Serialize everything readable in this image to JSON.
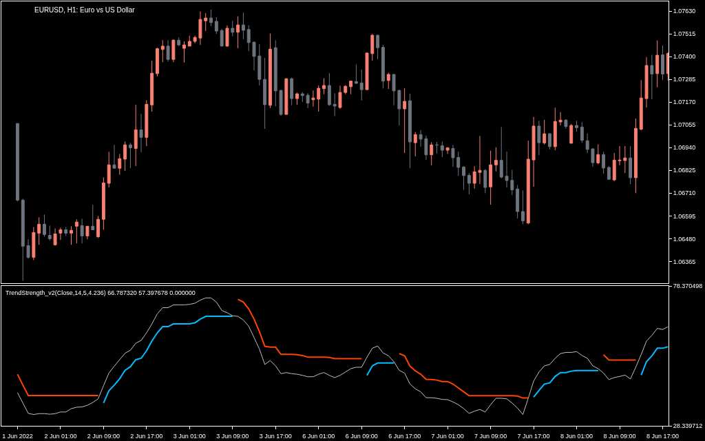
{
  "chart_data": [
    {
      "type": "candlestick",
      "title": "EURUSD, H1: Euro vs US Dollar",
      "categories": [
        "1 Jun 2022",
        null,
        null,
        null,
        null,
        null,
        null,
        null,
        "2 Jun 01:00",
        null,
        null,
        null,
        null,
        null,
        null,
        null,
        "2 Jun 09:00",
        null,
        null,
        null,
        null,
        null,
        null,
        null,
        "2 Jun 17:00",
        null,
        null,
        null,
        null,
        null,
        null,
        null,
        "3 Jun 01:00",
        null,
        null,
        null,
        null,
        null,
        null,
        null,
        "3 Jun 09:00",
        null,
        null,
        null,
        null,
        null,
        null,
        null,
        "3 Jun 17:00",
        null,
        null,
        null,
        null,
        null,
        null,
        null,
        "6 Jun 01:00",
        null,
        null,
        null,
        null,
        null,
        null,
        null,
        "6 Jun 09:00",
        null,
        null,
        null,
        null,
        null,
        null,
        null,
        "6 Jun 17:00",
        null,
        null,
        null,
        null,
        null,
        null,
        null,
        "7 Jun 01:00",
        null,
        null,
        null,
        null,
        null,
        null,
        null,
        "7 Jun 09:00",
        null,
        null,
        null,
        null,
        null,
        null,
        null,
        "7 Jun 17:00",
        null,
        null,
        null,
        null,
        null,
        null,
        null,
        "8 Jun 01:00",
        null,
        null,
        null,
        null,
        null,
        null,
        null,
        "8 Jun 09:00",
        null,
        null,
        null,
        null,
        null,
        null,
        null,
        "8 Jun 17:00",
        null
      ],
      "ohlc": [
        [
          1.07062,
          1.07062,
          1.06668,
          1.06675
        ],
        [
          1.06675,
          1.06682,
          1.06267,
          1.06442
        ],
        [
          1.06445,
          1.06477,
          1.06379,
          1.06386
        ],
        [
          1.06386,
          1.06539,
          1.06372,
          1.06511
        ],
        [
          1.06508,
          1.06588,
          1.06449,
          1.06553
        ],
        [
          1.06553,
          1.06602,
          1.0649,
          1.06501
        ],
        [
          1.06497,
          1.06546,
          1.0647,
          1.0648
        ],
        [
          1.06449,
          1.06532,
          1.06445,
          1.06504
        ],
        [
          1.06508,
          1.06536,
          1.06473,
          1.06525
        ],
        [
          1.06525,
          1.06539,
          1.06494,
          1.06508
        ],
        [
          1.06508,
          1.06543,
          1.06449,
          1.06522
        ],
        [
          1.06543,
          1.06578,
          1.06456,
          1.06564
        ],
        [
          1.06546,
          1.06581,
          1.06456,
          1.06494
        ],
        [
          1.06494,
          1.06543,
          1.06477,
          1.06543
        ],
        [
          1.06543,
          1.06651,
          1.06525,
          1.06525
        ],
        [
          1.0649,
          1.06595,
          1.06484,
          1.06578
        ],
        [
          1.06578,
          1.0679,
          1.06525,
          1.06762
        ],
        [
          1.0676,
          1.06919,
          1.06739,
          1.06853
        ],
        [
          1.06853,
          1.06954,
          1.06836,
          1.06836
        ],
        [
          1.06836,
          1.06908,
          1.06803,
          1.06884
        ],
        [
          1.06882,
          1.06971,
          1.06822,
          1.06954
        ],
        [
          1.06954,
          1.06964,
          1.06836,
          1.06939
        ],
        [
          1.06936,
          1.07156,
          1.06847,
          1.0703
        ],
        [
          1.0703,
          1.07111,
          1.06917,
          1.06992
        ],
        [
          1.06992,
          1.0718,
          1.06948,
          1.07159
        ],
        [
          1.07156,
          1.07379,
          1.07122,
          1.07316
        ],
        [
          1.07314,
          1.07445,
          1.073,
          1.0744
        ],
        [
          1.07436,
          1.07483,
          1.07372,
          1.07453
        ],
        [
          1.07453,
          1.07483,
          1.07375,
          1.07386
        ],
        [
          1.07386,
          1.07488,
          1.07372,
          1.07483
        ],
        [
          1.07483,
          1.07497,
          1.07453,
          1.07459
        ],
        [
          1.07442,
          1.07477,
          1.0737,
          1.07459
        ],
        [
          1.07453,
          1.07506,
          1.07453,
          1.07477
        ],
        [
          1.07477,
          1.07506,
          1.07467,
          1.07497
        ],
        [
          1.07494,
          1.07628,
          1.07459,
          1.07588
        ],
        [
          1.07581,
          1.0762,
          1.07529,
          1.07595
        ],
        [
          1.07595,
          1.07637,
          1.07554,
          1.07572
        ],
        [
          1.07578,
          1.07599,
          1.07515,
          1.07529
        ],
        [
          1.07532,
          1.0754,
          1.07453,
          1.07453
        ],
        [
          1.07453,
          1.07558,
          1.0745,
          1.07543
        ],
        [
          1.07543,
          1.07581,
          1.07502,
          1.07523
        ],
        [
          1.07523,
          1.07604,
          1.07442,
          1.0756
        ],
        [
          1.0756,
          1.07622,
          1.07488,
          1.07533
        ],
        [
          1.07537,
          1.07558,
          1.07428,
          1.07471
        ],
        [
          1.07473,
          1.07477,
          1.07331,
          1.07401
        ],
        [
          1.07403,
          1.07463,
          1.07254,
          1.07285
        ],
        [
          1.07285,
          1.07393,
          1.07035,
          1.07157
        ],
        [
          1.07154,
          1.07517,
          1.0714,
          1.07438
        ],
        [
          1.07445,
          1.07482,
          1.07149,
          1.07227
        ],
        [
          1.07229,
          1.07233,
          1.07101,
          1.07108
        ],
        [
          1.07108,
          1.07291,
          1.07105,
          1.07288
        ],
        [
          1.07288,
          1.07294,
          1.07154,
          1.07188
        ],
        [
          1.07188,
          1.07218,
          1.07157,
          1.07212
        ],
        [
          1.07212,
          1.07221,
          1.07171,
          1.07203
        ],
        [
          1.07205,
          1.07215,
          1.0714,
          1.07165
        ],
        [
          1.07182,
          1.07229,
          1.07147,
          1.07191
        ],
        [
          1.07185,
          1.07254,
          1.07122,
          1.0724
        ],
        [
          1.07238,
          1.07291,
          1.0721,
          1.07254
        ],
        [
          1.07254,
          1.07316,
          1.07151,
          1.07157
        ],
        [
          1.07159,
          1.07215,
          1.07099,
          1.0715
        ],
        [
          1.07143,
          1.07253,
          1.07136,
          1.07219
        ],
        [
          1.07219,
          1.07256,
          1.0721,
          1.0725
        ],
        [
          1.07248,
          1.07279,
          1.0721,
          1.07276
        ],
        [
          1.07274,
          1.0736,
          1.07262,
          1.07265
        ],
        [
          1.07267,
          1.07334,
          1.07178,
          1.07233
        ],
        [
          1.07233,
          1.07421,
          1.07231,
          1.07418
        ],
        [
          1.07415,
          1.07514,
          1.0738,
          1.07508
        ],
        [
          1.07508,
          1.07511,
          1.07387,
          1.07445
        ],
        [
          1.07447,
          1.07459,
          1.07239,
          1.07276
        ],
        [
          1.07279,
          1.07319,
          1.07236,
          1.0731
        ],
        [
          1.0731,
          1.07313,
          1.07154,
          1.07227
        ],
        [
          1.07229,
          1.07233,
          1.07052,
          1.07136
        ],
        [
          1.07136,
          1.0724,
          1.06913,
          1.07174
        ],
        [
          1.07177,
          1.07212,
          1.06836,
          1.06969
        ],
        [
          1.06965,
          1.07019,
          1.06896,
          1.07006
        ],
        [
          1.07006,
          1.07029,
          1.06945,
          1.06983
        ],
        [
          1.06985,
          1.07,
          1.06878,
          1.06904
        ],
        [
          1.06904,
          1.06968,
          1.06851,
          1.06954
        ],
        [
          1.06954,
          1.06968,
          1.0691,
          1.06953
        ],
        [
          1.0695,
          1.06971,
          1.06892,
          1.06927
        ],
        [
          1.06927,
          1.06942,
          1.06908,
          1.06939
        ],
        [
          1.06936,
          1.06954,
          1.06843,
          1.06889
        ],
        [
          1.06891,
          1.06919,
          1.06797,
          1.0684
        ],
        [
          1.06842,
          1.06846,
          1.06727,
          1.06799
        ],
        [
          1.068,
          1.06811,
          1.06704,
          1.0676
        ],
        [
          1.0676,
          1.06846,
          1.06733,
          1.06818
        ],
        [
          1.06815,
          1.06999,
          1.06756,
          1.06825
        ],
        [
          1.06825,
          1.06832,
          1.0671,
          1.06739
        ],
        [
          1.06742,
          1.06925,
          1.06652,
          1.06853
        ],
        [
          1.06853,
          1.06942,
          1.0682,
          1.06876
        ],
        [
          1.06876,
          1.07044,
          1.06785,
          1.06791
        ],
        [
          1.06796,
          1.06919,
          1.06739,
          1.06774
        ],
        [
          1.06775,
          1.06828,
          1.067,
          1.06727
        ],
        [
          1.06731,
          1.06751,
          1.06582,
          1.06617
        ],
        [
          1.06617,
          1.06724,
          1.06553,
          1.0657
        ],
        [
          1.06559,
          1.06975,
          1.06553,
          1.06882
        ],
        [
          1.06878,
          1.07095,
          1.06742,
          1.07049
        ],
        [
          1.07049,
          1.07076,
          1.06902,
          1.06965
        ],
        [
          1.06964,
          1.07081,
          1.06956,
          1.0701
        ],
        [
          1.0701,
          1.07014,
          1.06931,
          1.06945
        ],
        [
          1.06945,
          1.07142,
          1.06927,
          1.07072
        ],
        [
          1.0707,
          1.0712,
          1.07052,
          1.07079
        ],
        [
          1.07079,
          1.07084,
          1.07035,
          1.07047
        ],
        [
          1.06962,
          1.0706,
          1.06962,
          1.07052
        ],
        [
          1.07052,
          1.07076,
          1.07021,
          1.07041
        ],
        [
          1.07044,
          1.07068,
          1.06965,
          1.06977
        ],
        [
          1.06975,
          1.07012,
          1.06913,
          1.06931
        ],
        [
          1.06934,
          1.06936,
          1.06843,
          1.06864
        ],
        [
          1.06863,
          1.06957,
          1.06857,
          1.06905
        ],
        [
          1.06905,
          1.06919,
          1.06808,
          1.06837
        ],
        [
          1.0684,
          1.06847,
          1.06777,
          1.0678
        ],
        [
          1.06777,
          1.06913,
          1.06771,
          1.06877
        ],
        [
          1.06874,
          1.06948,
          1.06851,
          1.06877
        ],
        [
          1.06875,
          1.06948,
          1.06812,
          1.06888
        ],
        [
          1.06888,
          1.06948,
          1.06756,
          1.06788
        ],
        [
          1.06788,
          1.07087,
          1.0671,
          1.07037
        ],
        [
          1.07033,
          1.07281,
          1.07028,
          1.07191
        ],
        [
          1.07188,
          1.07398,
          1.07143,
          1.07355
        ],
        [
          1.07355,
          1.07409,
          1.07184,
          1.07312
        ],
        [
          1.07314,
          1.07482,
          1.07245,
          1.07407
        ],
        [
          1.07409,
          1.07456,
          1.07281,
          1.07312
        ],
        [
          1.07314,
          1.07421,
          1.07279,
          1.07416
        ]
      ],
      "colors": [
        "#6e757e",
        "#6e757e",
        "#6e757e",
        "#fa8072",
        "#fa8072",
        "#6e757e",
        "#6e757e",
        "#fa8072",
        "#fa8072",
        "#6e757e",
        "#fa8072",
        "#fa8072",
        "#6e757e",
        "#fa8072",
        "#6e757e",
        "#fa8072",
        "#fa8072",
        "#fa8072",
        "#6e757e",
        "#fa8072",
        "#fa8072",
        "#6e757e",
        "#fa8072",
        "#6e757e",
        "#fa8072",
        "#fa8072",
        "#fa8072",
        "#fa8072",
        "#6e757e",
        "#fa8072",
        "#6e757e",
        "#fa8072",
        "#fa8072",
        "#fa8072",
        "#fa8072",
        "#fa8072",
        "#6e757e",
        "#6e757e",
        "#6e757e",
        "#fa8072",
        "#6e757e",
        "#fa8072",
        "#6e757e",
        "#6e757e",
        "#6e757e",
        "#6e757e",
        "#6e757e",
        "#fa8072",
        "#6e757e",
        "#6e757e",
        "#fa8072",
        "#6e757e",
        "#fa8072",
        "#6e757e",
        "#6e757e",
        "#fa8072",
        "#fa8072",
        "#fa8072",
        "#6e757e",
        "#6e757e",
        "#fa8072",
        "#fa8072",
        "#fa8072",
        "#6e757e",
        "#6e757e",
        "#fa8072",
        "#fa8072",
        "#6e757e",
        "#6e757e",
        "#fa8072",
        "#6e757e",
        "#6e757e",
        "#fa8072",
        "#6e757e",
        "#fa8072",
        "#6e757e",
        "#6e757e",
        "#fa8072",
        "#6e757e",
        "#6e757e",
        "#fa8072",
        "#6e757e",
        "#6e757e",
        "#6e757e",
        "#6e757e",
        "#fa8072",
        "#fa8072",
        "#6e757e",
        "#fa8072",
        "#fa8072",
        "#6e757e",
        "#6e757e",
        "#6e757e",
        "#6e757e",
        "#6e757e",
        "#fa8072",
        "#fa8072",
        "#6e757e",
        "#fa8072",
        "#6e757e",
        "#fa8072",
        "#fa8072",
        "#6e757e",
        "#fa8072",
        "#6e757e",
        "#6e757e",
        "#6e757e",
        "#6e757e",
        "#fa8072",
        "#6e757e",
        "#6e757e",
        "#fa8072",
        "#fa8072",
        "#fa8072",
        "#6e757e",
        "#fa8072",
        "#fa8072",
        "#fa8072",
        "#6e757e",
        "#fa8072",
        "#6e757e",
        "#fa8072"
      ],
      "ylim": [
        1.06254,
        1.07678
      ],
      "yticks": [
        {
          "value": 1.0763,
          "label": "1.07630"
        },
        {
          "value": 1.07515,
          "label": "1.07515"
        },
        {
          "value": 1.074,
          "label": "1.07400"
        },
        {
          "value": 1.07285,
          "label": "1.07285"
        },
        {
          "value": 1.0717,
          "label": "1.07170"
        },
        {
          "value": 1.07055,
          "label": "1.07055"
        },
        {
          "value": 1.0694,
          "label": "1.06940"
        },
        {
          "value": 1.06825,
          "label": "1.06825"
        },
        {
          "value": 1.0671,
          "label": "1.06710"
        },
        {
          "value": 1.06595,
          "label": "1.06595"
        },
        {
          "value": 1.0648,
          "label": "1.06480"
        },
        {
          "value": 1.06365,
          "label": "1.06365"
        }
      ],
      "tick_labels": "y"
    },
    {
      "type": "line",
      "title": "TrendStrength_v2(Close,14,5,4.236) 66.787320 57.397678 0.000000",
      "categories": [
        "1 Jun 2022",
        null,
        null,
        null,
        null,
        null,
        null,
        null,
        "2 Jun 01:00",
        null,
        null,
        null,
        null,
        null,
        null,
        null,
        "2 Jun 09:00",
        null,
        null,
        null,
        null,
        null,
        null,
        null,
        "2 Jun 17:00",
        null,
        null,
        null,
        null,
        null,
        null,
        null,
        "3 Jun 01:00",
        null,
        null,
        null,
        null,
        null,
        null,
        null,
        "3 Jun 09:00",
        null,
        null,
        null,
        null,
        null,
        null,
        null,
        "3 Jun 17:00",
        null,
        null,
        null,
        null,
        null,
        null,
        null,
        "6 Jun 01:00",
        null,
        null,
        null,
        null,
        null,
        null,
        null,
        "6 Jun 09:00",
        null,
        null,
        null,
        null,
        null,
        null,
        null,
        "6 Jun 17:00",
        null,
        null,
        null,
        null,
        null,
        null,
        null,
        "7 Jun 01:00",
        null,
        null,
        null,
        null,
        null,
        null,
        null,
        "7 Jun 09:00",
        null,
        null,
        null,
        null,
        null,
        null,
        null,
        "7 Jun 17:00",
        null,
        null,
        null,
        null,
        null,
        null,
        null,
        "8 Jun 01:00",
        null,
        null,
        null,
        null,
        null,
        null,
        null,
        "8 Jun 09:00",
        null,
        null,
        null,
        null,
        null,
        null,
        null,
        "8 Jun 17:00",
        null
      ],
      "series": [
        {
          "color": "#c0c0c0",
          "values": [
            40.2,
            36.5,
            32.8,
            32.4,
            32.7,
            32.7,
            32.5,
            32.7,
            33.3,
            33.3,
            34.5,
            35.0,
            35.1,
            35.7,
            36.7,
            38.0,
            42.7,
            47.2,
            49.7,
            52.0,
            54.3,
            55.4,
            57.9,
            58.9,
            61.6,
            64.8,
            68.4,
            70.6,
            70.6,
            71.6,
            71.6,
            71.6,
            71.8,
            72.2,
            73.3,
            74.1,
            74.1,
            72.6,
            69.6,
            68.8,
            67.7,
            67.5,
            66.2,
            64.0,
            59.9,
            55.8,
            50.3,
            51.7,
            49.8,
            47.0,
            47.4,
            47.0,
            46.8,
            46.4,
            45.9,
            45.9,
            46.8,
            47.4,
            46.4,
            45.6,
            46.4,
            47.6,
            48.8,
            49.3,
            49.3,
            52.9,
            56.1,
            56.9,
            54.4,
            53.4,
            51.3,
            48.2,
            47.2,
            43.3,
            41.6,
            40.5,
            38.4,
            38.4,
            38.2,
            37.8,
            37.7,
            36.9,
            35.9,
            34.5,
            32.8,
            33.6,
            34.2,
            33.3,
            35.9,
            38.2,
            38.2,
            38.0,
            36.5,
            34.7,
            32.4,
            38.2,
            44.3,
            47.6,
            49.8,
            50.3,
            52.5,
            54.2,
            54.6,
            54.6,
            54.9,
            53.5,
            52.5,
            49.8,
            48.8,
            47.2,
            44.9,
            45.6,
            46.0,
            46.5,
            45.1,
            49.3,
            53.8,
            58.7,
            60.7,
            63.2,
            62.8,
            63.8
          ]
        },
        {
          "color": "#00bfff",
          "values": [
            null,
            null,
            null,
            null,
            null,
            null,
            null,
            null,
            null,
            null,
            null,
            null,
            null,
            null,
            null,
            null,
            36.5,
            40.9,
            42.9,
            45.2,
            48.2,
            49.5,
            52.0,
            52.5,
            55.2,
            58.7,
            61.6,
            63.8,
            63.8,
            64.8,
            64.8,
            64.8,
            64.8,
            65.2,
            66.5,
            67.5,
            67.5,
            67.5,
            67.5,
            67.5,
            67.5,
            null,
            null,
            null,
            null,
            null,
            null,
            null,
            null,
            null,
            null,
            null,
            null,
            null,
            null,
            null,
            null,
            null,
            null,
            null,
            null,
            null,
            null,
            null,
            null,
            46.4,
            49.8,
            50.8,
            50.8,
            50.8,
            50.8,
            null,
            null,
            null,
            null,
            null,
            null,
            null,
            null,
            null,
            null,
            null,
            null,
            null,
            null,
            null,
            null,
            null,
            null,
            null,
            null,
            null,
            null,
            null,
            null,
            null,
            38.6,
            41.0,
            43.3,
            43.7,
            46.0,
            47.4,
            47.4,
            47.9,
            48.1,
            48.1,
            48.1,
            48.1,
            48.1,
            null,
            null,
            null,
            null,
            null,
            null,
            null,
            46.5,
            51.3,
            53.4,
            56.1,
            56.1,
            56.6
          ]
        },
        {
          "color": "#ff4500",
          "values": [
            46.8,
            42.9,
            39.2,
            39.2,
            39.2,
            39.2,
            39.2,
            39.2,
            39.2,
            39.2,
            39.2,
            39.2,
            39.2,
            39.2,
            39.2,
            39.2,
            null,
            null,
            null,
            null,
            null,
            null,
            null,
            null,
            null,
            null,
            null,
            null,
            null,
            null,
            null,
            null,
            null,
            null,
            null,
            null,
            null,
            null,
            null,
            null,
            null,
            73.6,
            72.6,
            70.2,
            66.5,
            62.0,
            56.8,
            56.5,
            56.5,
            53.9,
            53.9,
            53.9,
            53.8,
            53.5,
            52.9,
            52.9,
            52.9,
            52.9,
            52.8,
            52.4,
            52.4,
            52.4,
            52.4,
            52.4,
            52.4,
            null,
            null,
            null,
            null,
            null,
            null,
            54.2,
            53.4,
            49.7,
            48.0,
            46.8,
            45.0,
            44.9,
            44.7,
            44.2,
            44.2,
            43.3,
            41.9,
            40.5,
            39.1,
            39.1,
            39.1,
            39.1,
            39.1,
            39.1,
            39.1,
            39.1,
            39.1,
            39.0,
            38.3,
            38.3,
            null,
            null,
            null,
            null,
            null,
            null,
            null,
            null,
            null,
            null,
            null,
            null,
            null,
            53.8,
            51.9,
            51.9,
            51.9,
            51.9,
            51.9,
            51.9,
            null,
            null,
            null,
            null,
            null,
            null
          ]
        }
      ],
      "ylim": [
        28.339712,
        78.370498
      ],
      "yticks": [
        78.370498,
        28.339712
      ]
    }
  ]
}
